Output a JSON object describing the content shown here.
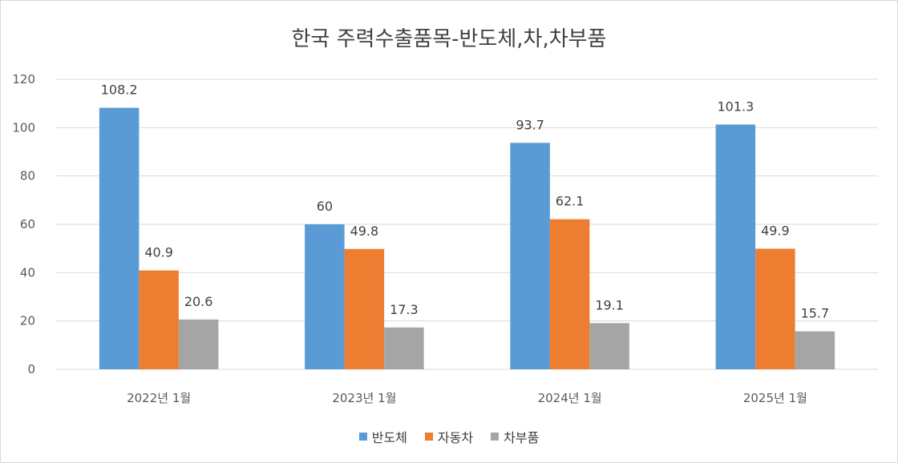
{
  "chart_data": {
    "type": "bar",
    "title": "한국 주력수출품목-반도체,차,차부품",
    "categories": [
      "2022년 1월",
      "2023년 1월",
      "2024년 1월",
      "2025년 1월"
    ],
    "series": [
      {
        "name": "반도체",
        "color": "#5b9bd5",
        "values": [
          108.2,
          60,
          93.7,
          101.3
        ]
      },
      {
        "name": "자동차",
        "color": "#ed7d31",
        "values": [
          40.9,
          49.8,
          62.1,
          49.9
        ]
      },
      {
        "name": "차부품",
        "color": "#a5a5a5",
        "values": [
          20.6,
          17.3,
          19.1,
          15.7
        ]
      }
    ],
    "ylim": [
      0,
      120
    ],
    "yticks": [
      0,
      20,
      40,
      60,
      80,
      100,
      120
    ],
    "grid": true,
    "legend": "bottom"
  }
}
